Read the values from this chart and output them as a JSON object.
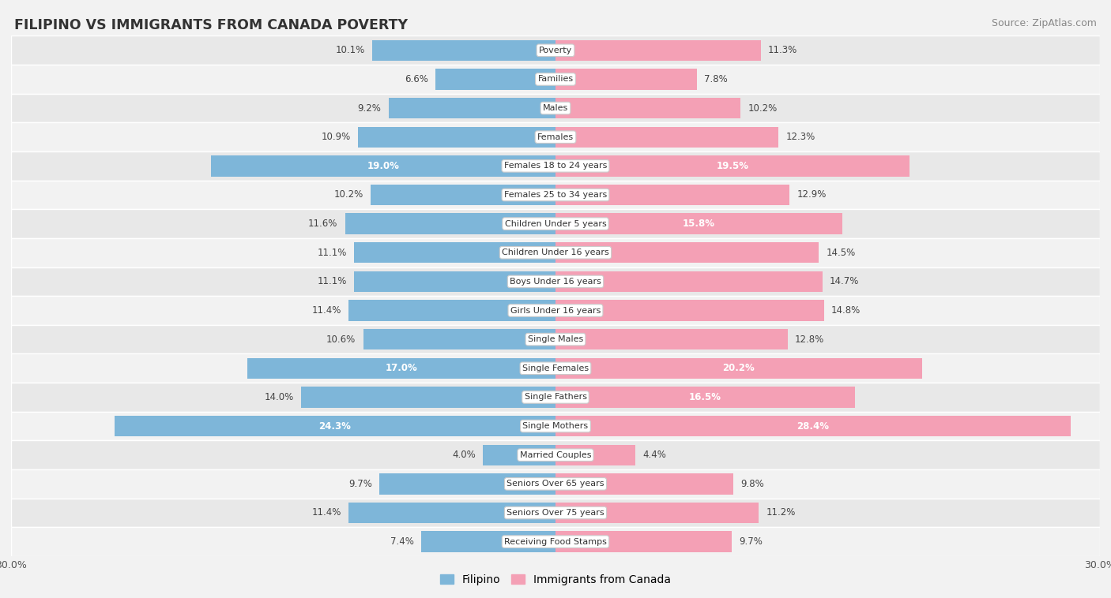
{
  "title": "FILIPINO VS IMMIGRANTS FROM CANADA POVERTY",
  "source": "Source: ZipAtlas.com",
  "categories": [
    "Poverty",
    "Families",
    "Males",
    "Females",
    "Females 18 to 24 years",
    "Females 25 to 34 years",
    "Children Under 5 years",
    "Children Under 16 years",
    "Boys Under 16 years",
    "Girls Under 16 years",
    "Single Males",
    "Single Females",
    "Single Fathers",
    "Single Mothers",
    "Married Couples",
    "Seniors Over 65 years",
    "Seniors Over 75 years",
    "Receiving Food Stamps"
  ],
  "filipino": [
    10.1,
    6.6,
    9.2,
    10.9,
    19.0,
    10.2,
    11.6,
    11.1,
    11.1,
    11.4,
    10.6,
    17.0,
    14.0,
    24.3,
    4.0,
    9.7,
    11.4,
    7.4
  ],
  "canada": [
    11.3,
    7.8,
    10.2,
    12.3,
    19.5,
    12.9,
    15.8,
    14.5,
    14.7,
    14.8,
    12.8,
    20.2,
    16.5,
    28.4,
    4.4,
    9.8,
    11.2,
    9.7
  ],
  "filipino_color": "#7eb6d9",
  "canada_color": "#f4a0b5",
  "highlight_threshold": 15.0,
  "xlim": 30.0,
  "bar_height": 0.72,
  "bg_color": "#f2f2f2",
  "row_color_odd": "#e8e8e8",
  "row_color_even": "#f2f2f2",
  "legend_filipino": "Filipino",
  "legend_canada": "Immigrants from Canada"
}
